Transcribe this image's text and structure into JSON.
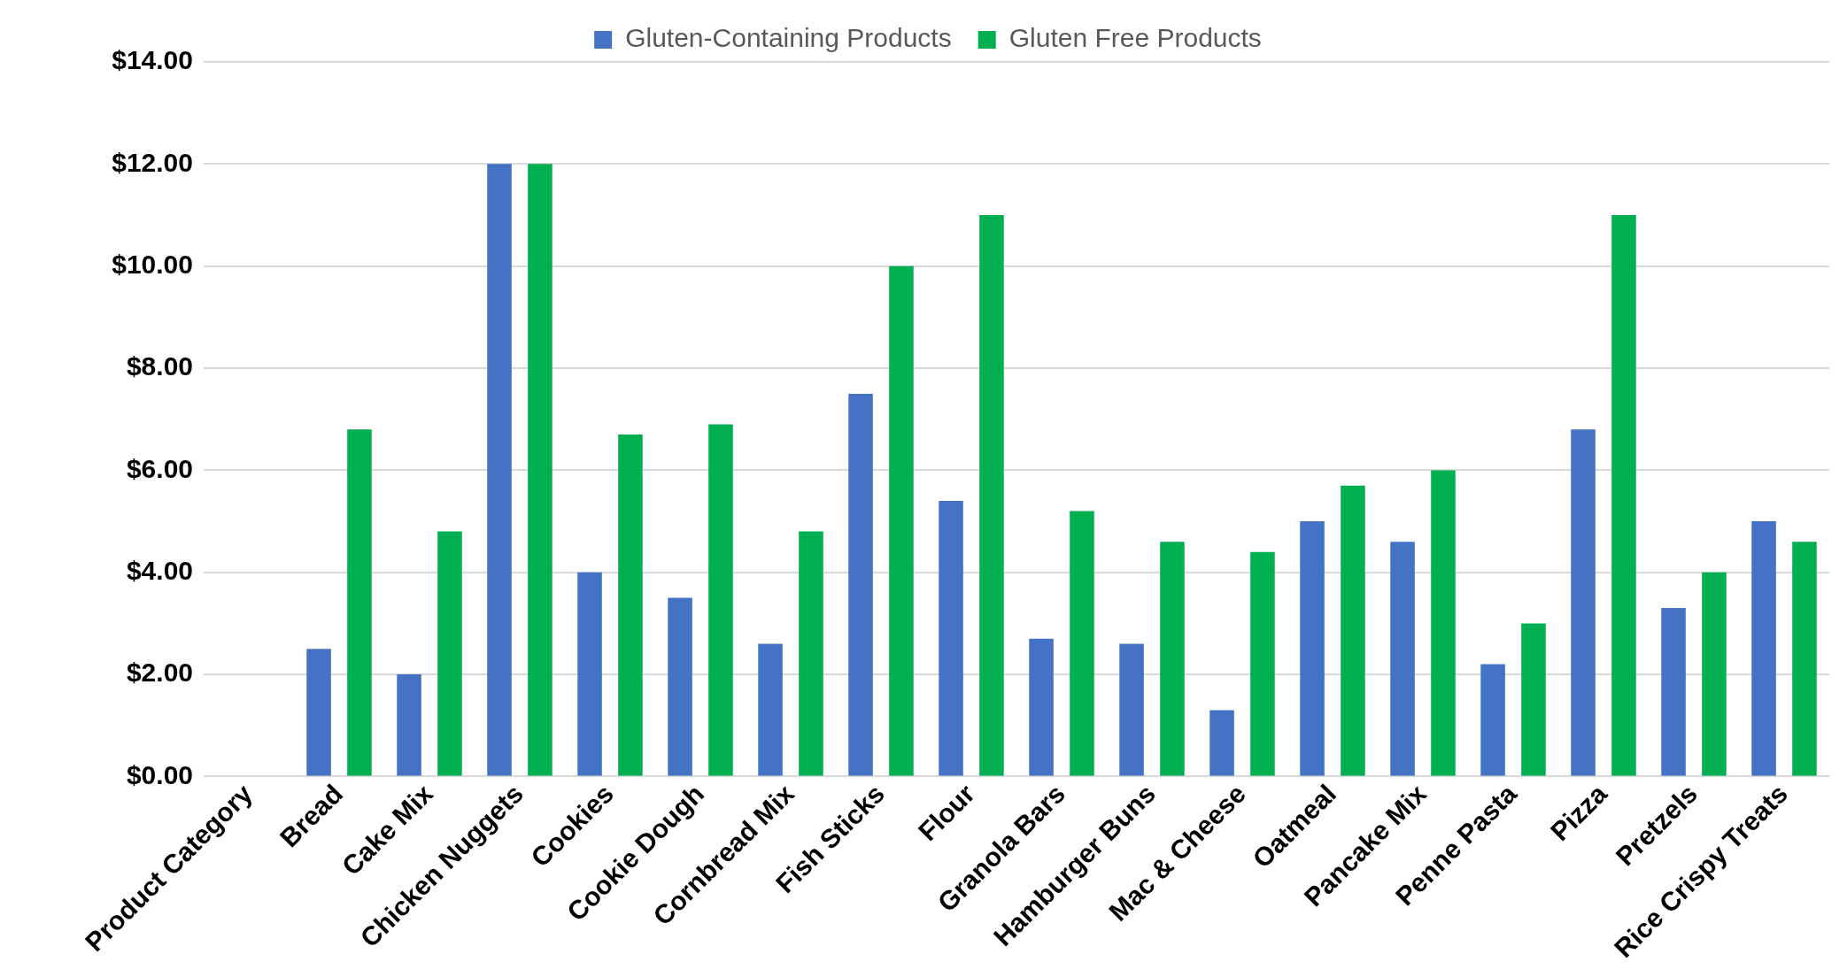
{
  "chart_data": {
    "type": "bar",
    "categories": [
      "Product Category",
      "Bread",
      "Cake Mix",
      "Chicken Nuggets",
      "Cookies",
      "Cookie Dough",
      "Cornbread Mix",
      "Fish Sticks",
      "Flour",
      "Granola Bars",
      "Hamburger Buns",
      "Mac & Cheese",
      "Oatmeal",
      "Pancake Mix",
      "Penne Pasta",
      "Pizza",
      "Pretzels",
      "Rice Crispy Treats"
    ],
    "series": [
      {
        "name": "Gluten-Containing Products",
        "color": "#4472c4",
        "values": [
          null,
          2.5,
          2.0,
          12.0,
          4.0,
          3.5,
          2.6,
          7.5,
          5.4,
          2.7,
          2.6,
          1.3,
          5.0,
          4.6,
          2.2,
          6.8,
          3.3,
          5.0
        ]
      },
      {
        "name": "Gluten Free Products",
        "color": "#00b050",
        "values": [
          null,
          6.8,
          4.8,
          12.0,
          6.7,
          6.9,
          4.8,
          10.0,
          11.0,
          5.2,
          4.6,
          4.4,
          5.7,
          6.0,
          3.0,
          11.0,
          4.0,
          4.6
        ]
      }
    ],
    "ylim": [
      0,
      14
    ],
    "yticks": [
      {
        "value": 0,
        "label": "$0.00"
      },
      {
        "value": 2,
        "label": "$2.00"
      },
      {
        "value": 4,
        "label": "$4.00"
      },
      {
        "value": 6,
        "label": "$6.00"
      },
      {
        "value": 8,
        "label": "$8.00"
      },
      {
        "value": 10,
        "label": "$10.00"
      },
      {
        "value": 12,
        "label": "$12.00"
      },
      {
        "value": 14,
        "label": "$14.00"
      }
    ],
    "grid": "y",
    "legend": "top"
  }
}
